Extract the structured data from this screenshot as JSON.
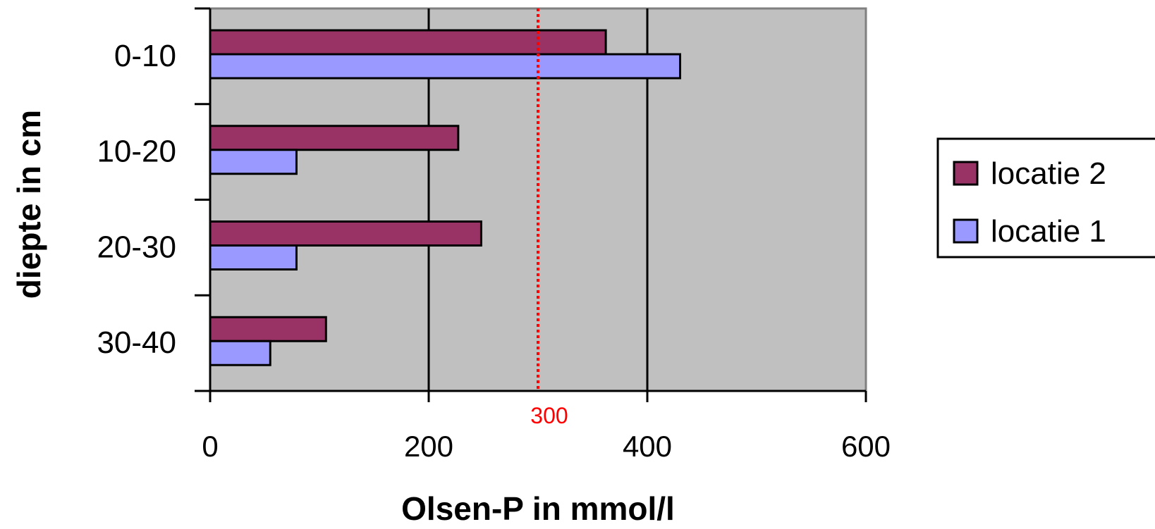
{
  "chart_data": {
    "type": "bar",
    "orientation": "horizontal",
    "title": "",
    "xlabel": "Olsen-P in mmol/l",
    "ylabel": "diepte in cm",
    "categories": [
      "0-10",
      "10-20",
      "20-30",
      "30-40"
    ],
    "series": [
      {
        "name": "locatie 2",
        "color": "#993366",
        "values": [
          362,
          227,
          248,
          106
        ]
      },
      {
        "name": "locatie 1",
        "color": "#9999FF",
        "values": [
          430,
          79,
          79,
          55
        ]
      }
    ],
    "xlim": [
      0,
      600
    ],
    "x_ticks": [
      "0",
      "200",
      "400",
      "600"
    ],
    "grid": true,
    "plot_background": "#C0C0C0",
    "reference_line": {
      "value": 300,
      "label": "300",
      "color": "#FF0000",
      "style": "dotted"
    },
    "legend_placement": "right"
  }
}
